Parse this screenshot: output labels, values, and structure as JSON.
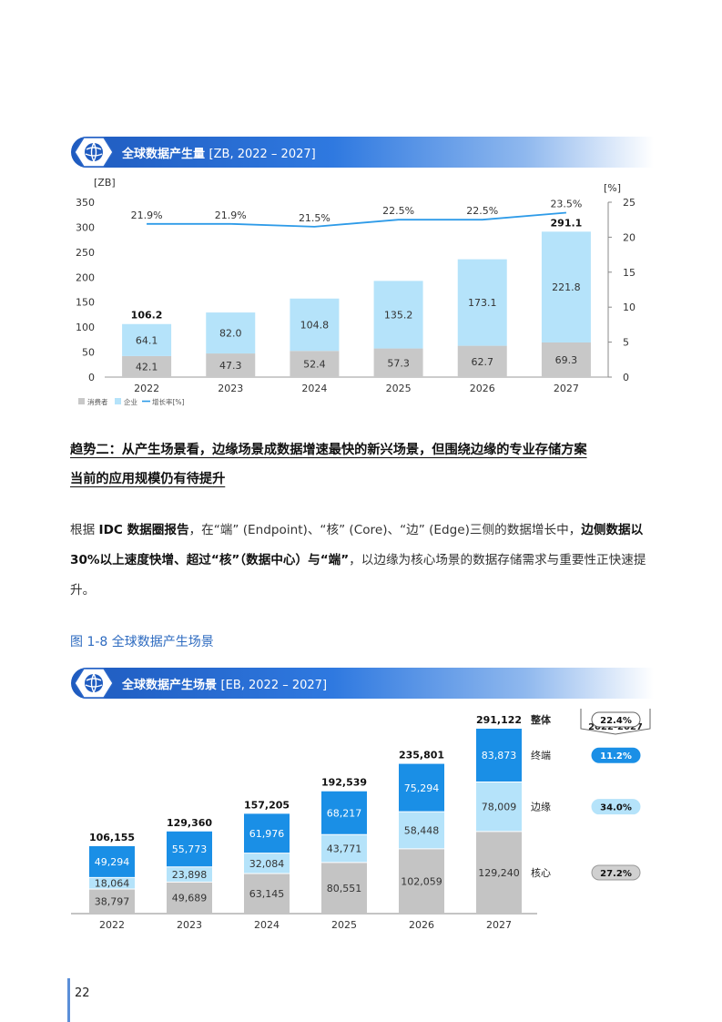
{
  "chart1": {
    "banner_title": "全球数据产生量",
    "banner_sub": "[ZB, 2022 – 2027]",
    "y_left_unit": "[ZB]",
    "y_right_unit": "[%]",
    "y_left_ticks": [
      "350",
      "300",
      "250",
      "200",
      "150",
      "100",
      "50",
      "0"
    ],
    "y_right_ticks": [
      "25",
      "20",
      "15",
      "10",
      "5",
      "0"
    ],
    "legend": [
      "消费者",
      "企业",
      "增长率[%]"
    ],
    "colors": {
      "consumer": "#c8c8c8",
      "enterprise": "#b5e3fa",
      "growth": "#2e9be8"
    }
  },
  "chart_data": [
    {
      "type": "bar",
      "title": "全球数据产生量",
      "categories": [
        "2022",
        "2023",
        "2024",
        "2025",
        "2026",
        "2027"
      ],
      "series": [
        {
          "name": "消费者",
          "values": [
            42.1,
            47.3,
            52.4,
            57.3,
            62.7,
            69.3
          ]
        },
        {
          "name": "企业",
          "values": [
            64.1,
            82.0,
            104.8,
            135.2,
            173.1,
            221.8
          ]
        },
        {
          "name": "增长率[%]",
          "values": [
            21.9,
            21.9,
            21.5,
            22.5,
            22.5,
            23.5
          ],
          "axis": "right",
          "type": "line"
        }
      ],
      "bar_labels": {
        "consumer": [
          "42.1",
          "47.3",
          "52.4",
          "57.3",
          "62.7",
          "69.3"
        ],
        "enterprise": [
          "64.1",
          "82.0",
          "104.8",
          "135.2",
          "173.1",
          "221.8"
        ]
      },
      "growth_labels": [
        "21.9%",
        "21.9%",
        "21.5%",
        "22.5%",
        "22.5%",
        "23.5%"
      ],
      "totals_labeled": {
        "2022": "106.2",
        "2027": "291.1"
      },
      "ylim": [
        0,
        350
      ],
      "y2lim": [
        0,
        25
      ]
    },
    {
      "type": "bar",
      "title": "全球数据产生场景",
      "categories": [
        "2022",
        "2023",
        "2024",
        "2025",
        "2026",
        "2027"
      ],
      "series": [
        {
          "name": "核心",
          "values": [
            38797,
            49689,
            63145,
            80551,
            102059,
            129240
          ]
        },
        {
          "name": "边缘",
          "values": [
            18064,
            23898,
            32084,
            43771,
            58448,
            78009
          ]
        },
        {
          "name": "终端",
          "values": [
            49294,
            55773,
            61976,
            68217,
            75294,
            83873
          ]
        }
      ],
      "totals": [
        106155,
        129360,
        157205,
        192539,
        235801,
        291122
      ],
      "value_labels": {
        "core": [
          "38,797",
          "49,689",
          "63,145",
          "80,551",
          "102,059",
          "129,240"
        ],
        "edge": [
          "18,064",
          "23,898",
          "32,084",
          "43,771",
          "58,448",
          "78,009"
        ],
        "endpoint": [
          "49,294",
          "55,773",
          "61,976",
          "68,217",
          "75,294",
          "83,873"
        ],
        "totals": [
          "106,155",
          "129,360",
          "157,205",
          "192,539",
          "235,801",
          "291,122"
        ]
      },
      "series_labels_right": [
        "整体",
        "终端",
        "边缘",
        "核心"
      ],
      "cagr": {
        "header": [
          "CAGR",
          "2022-2027"
        ],
        "values": [
          "22.4%",
          "11.2%",
          "34.0%",
          "27.2%"
        ]
      }
    }
  ],
  "chart2": {
    "banner_title": "全球数据产生场景",
    "banner_sub": "[EB, 2022 – 2027]",
    "colors": {
      "core": "#c4c4c4",
      "edge": "#b5e3fa",
      "endpoint": "#1a8fe6",
      "cagr_endpoint": "#1a8fe6",
      "cagr_edge": "#b5e3fa",
      "cagr_core": "#d0d0d0"
    }
  },
  "text": {
    "heading_line1": "趋势二：从产生场景看，边缘场景成数据增速最快的新兴场景，但围绕边缘的专业存储方案",
    "heading_line2": "当前的应用规模仍有待提升",
    "para_p1": "根据 ",
    "para_b1": "IDC 数据圈报告",
    "para_p2": "，在“端” (Endpoint)、“核” (Core)、“边” (Edge)三侧的数据增长中，",
    "para_b2": "边侧数据以 30%以上速度快增、超过“核”（数据中心）与“端”",
    "para_p3": "，以边缘为核心场景的数据存储需求与重要性正快速提升。",
    "figure_caption": "图 1-8 全球数据产生场景",
    "page_number": "22"
  }
}
